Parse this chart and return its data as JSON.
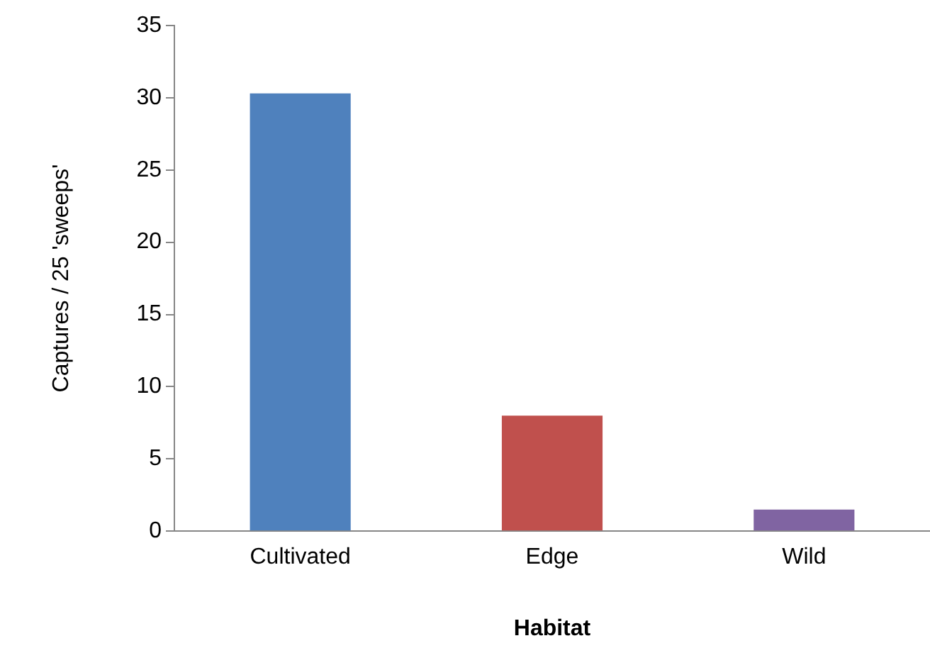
{
  "chart_data": {
    "type": "bar",
    "xlabel": "Habitat",
    "ylabel": "Captures / 25 'sweeps'",
    "categories": [
      "Cultivated",
      "Edge",
      "Wild"
    ],
    "values": [
      30.3,
      8.0,
      1.5
    ],
    "colors": [
      "#4f81bd",
      "#c0504d",
      "#8064a2"
    ],
    "ylim": [
      0,
      35
    ],
    "yticks": [
      0,
      5,
      10,
      15,
      20,
      25,
      30,
      35
    ],
    "grid": false,
    "legend": false
  }
}
